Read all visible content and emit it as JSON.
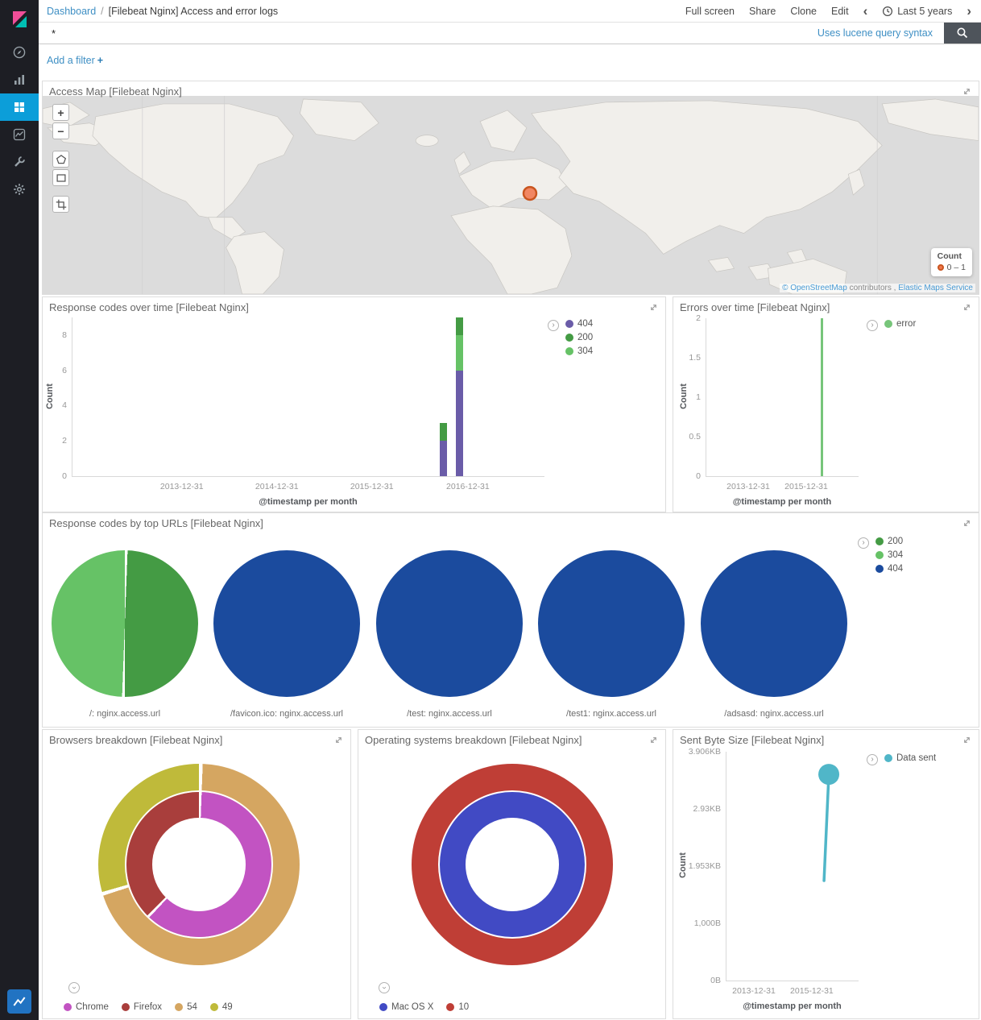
{
  "sidebar": {
    "active": "dashboard",
    "items": [
      "discover",
      "visualize",
      "dashboard",
      "timelion",
      "dev-tools",
      "management"
    ]
  },
  "topnav": {
    "breadcrumb_link": "Dashboard",
    "breadcrumb_sep": "/",
    "breadcrumb_current": "[Filebeat Nginx] Access and error logs",
    "actions": [
      "Full screen",
      "Share",
      "Clone",
      "Edit"
    ],
    "prev": "‹",
    "next": "›",
    "time_label": "Last 5 years"
  },
  "querybar": {
    "value": "*",
    "hint": "Uses lucene query syntax"
  },
  "filterbar": {
    "label": "Add a filter",
    "plus": "+"
  },
  "map": {
    "title": "Access Map [Filebeat Nginx]",
    "zoom_in": "+",
    "zoom_out": "−",
    "legend_title": "Count",
    "legend_range": "0 – 1",
    "marker_color": "#F0784F",
    "attribution": {
      "link1": "© OpenStreetMap",
      "middle": "contributors ,",
      "link2": "Elastic Maps Service"
    }
  },
  "chart_data": {
    "response_codes": {
      "type": "bar",
      "title": "Response codes over time [Filebeat Nginx]",
      "ylabel": "Count",
      "xlabel": "@timestamp per month",
      "ymax": 9,
      "yticks": [
        0,
        2,
        4,
        6,
        8
      ],
      "xticks": [
        {
          "pos": 0.233,
          "label": "2013-12-31"
        },
        {
          "pos": 0.434,
          "label": "2014-12-31"
        },
        {
          "pos": 0.635,
          "label": "2015-12-31"
        },
        {
          "pos": 0.838,
          "label": "2016-12-31"
        }
      ],
      "legend": [
        {
          "name": "404",
          "color": "#6A5CA8"
        },
        {
          "name": "200",
          "color": "#449B44"
        },
        {
          "name": "304",
          "color": "#66C266"
        }
      ],
      "bars": [
        {
          "x": "2016-10",
          "pos": 0.787,
          "stack": [
            {
              "name": "404",
              "value": 2
            },
            {
              "name": "200",
              "value": 1
            }
          ]
        },
        {
          "x": "2016-12",
          "pos": 0.821,
          "stack": [
            {
              "name": "404",
              "value": 6
            },
            {
              "name": "304",
              "value": 2
            },
            {
              "name": "200",
              "value": 1
            }
          ]
        }
      ]
    },
    "errors": {
      "type": "bar",
      "title": "Errors over time [Filebeat Nginx]",
      "ylabel": "Count",
      "xlabel": "@timestamp per month",
      "ymax": 2,
      "yticks": [
        0,
        0.5,
        1,
        1.5,
        2
      ],
      "xticks": [
        {
          "pos": 0.279,
          "label": "2013-12-31"
        },
        {
          "pos": 0.658,
          "label": "2015-12-31"
        }
      ],
      "legend": [
        {
          "name": "error",
          "color": "#77C57A"
        }
      ],
      "bars": [
        {
          "x": "2016-10",
          "pos": 0.763,
          "stack": [
            {
              "name": "error",
              "value": 2
            }
          ]
        }
      ]
    },
    "top_urls": {
      "type": "pie",
      "title": "Response codes by top URLs [Filebeat Nginx]",
      "legend": [
        {
          "name": "200",
          "color": "#449B44"
        },
        {
          "name": "304",
          "color": "#66C266"
        },
        {
          "name": "404",
          "color": "#1B4B9E"
        }
      ],
      "pies": [
        {
          "label": "/: nginx.access.url",
          "slices": [
            {
              "name": "200",
              "pct": 50
            },
            {
              "name": "304",
              "pct": 50
            }
          ]
        },
        {
          "label": "/favicon.ico: nginx.access.url",
          "slices": [
            {
              "name": "404",
              "pct": 100
            }
          ]
        },
        {
          "label": "/test: nginx.access.url",
          "slices": [
            {
              "name": "404",
              "pct": 100
            }
          ]
        },
        {
          "label": "/test1: nginx.access.url",
          "slices": [
            {
              "name": "404",
              "pct": 100
            }
          ]
        },
        {
          "label": "/adsasd: nginx.access.url",
          "slices": [
            {
              "name": "404",
              "pct": 100
            }
          ]
        }
      ]
    },
    "browsers": {
      "type": "donut",
      "title": "Browsers breakdown [Filebeat Nginx]",
      "legend": [
        {
          "name": "Chrome",
          "color": "#C253C2"
        },
        {
          "name": "Firefox",
          "color": "#A93E3C"
        },
        {
          "name": "54",
          "color": "#D5A661"
        },
        {
          "name": "49",
          "color": "#BFBA3A"
        }
      ],
      "inner": [
        {
          "name": "Chrome",
          "pct": 62
        },
        {
          "name": "Firefox",
          "pct": 38
        }
      ],
      "outer": [
        {
          "name": "54",
          "pct": 70
        },
        {
          "name": "49",
          "pct": 30
        }
      ]
    },
    "os": {
      "type": "donut",
      "title": "Operating systems breakdown [Filebeat Nginx]",
      "legend": [
        {
          "name": "Mac OS X",
          "color": "#414AC4"
        },
        {
          "name": "10",
          "color": "#BF3E36"
        }
      ],
      "inner": [
        {
          "name": "Mac OS X",
          "pct": 100
        }
      ],
      "outer": [
        {
          "name": "10",
          "pct": 100
        }
      ]
    },
    "sent_bytes": {
      "type": "line",
      "title": "Sent Byte Size [Filebeat Nginx]",
      "ylabel": "Count",
      "xlabel": "@timestamp per month",
      "ymax": 4000,
      "yticks": [
        {
          "v": 0,
          "label": "0B"
        },
        {
          "v": 1000,
          "label": "1,000B"
        },
        {
          "v": 2000,
          "label": "1.953KB"
        },
        {
          "v": 3000,
          "label": "2.93KB"
        },
        {
          "v": 4000,
          "label": "3.906KB"
        }
      ],
      "xticks": [
        {
          "pos": 0.212,
          "label": "2013-12-31"
        },
        {
          "pos": 0.648,
          "label": "2015-12-31"
        }
      ],
      "legend": [
        {
          "name": "Data sent",
          "color": "#50B6C8"
        }
      ],
      "points": [
        {
          "x": "2016-10",
          "pos": 0.74,
          "value": 1746
        },
        {
          "x": "2016-12",
          "pos": 0.776,
          "value": 3604
        }
      ]
    }
  }
}
